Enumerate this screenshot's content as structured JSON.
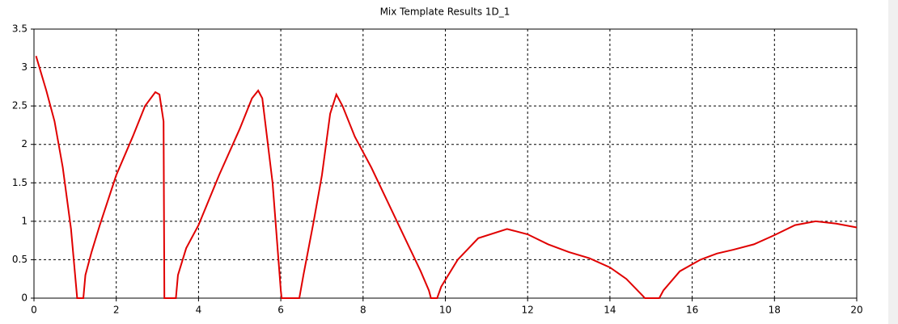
{
  "chart_data": {
    "type": "line",
    "title": "Mix Template Results 1D_1",
    "x": [
      0.05,
      0.3,
      0.5,
      0.7,
      0.9,
      1.0,
      1.05,
      1.2,
      1.25,
      1.4,
      1.6,
      2.0,
      2.4,
      2.7,
      2.95,
      3.05,
      3.15,
      3.17,
      3.45,
      3.5,
      3.7,
      4.0,
      4.5,
      5.0,
      5.3,
      5.45,
      5.55,
      5.8,
      6.0,
      6.02,
      6.45,
      6.55,
      6.8,
      7.0,
      7.2,
      7.35,
      7.5,
      7.8,
      8.2,
      8.6,
      9.0,
      9.4,
      9.6,
      9.65,
      9.8,
      9.9,
      10.3,
      10.8,
      11.5,
      12.0,
      12.5,
      13.0,
      13.5,
      14.0,
      14.4,
      14.8,
      14.85,
      15.2,
      15.3,
      15.7,
      16.2,
      16.6,
      17.0,
      17.5,
      18.0,
      18.5,
      19.0,
      19.5,
      20.0
    ],
    "series": [
      {
        "color": "#e00000",
        "values": [
          3.15,
          2.7,
          2.3,
          1.7,
          0.9,
          0.3,
          0,
          0,
          0.3,
          0.6,
          0.95,
          1.6,
          2.1,
          2.5,
          2.68,
          2.65,
          2.3,
          0,
          0,
          0.3,
          0.65,
          0.95,
          1.6,
          2.2,
          2.6,
          2.7,
          2.6,
          1.5,
          0.1,
          0,
          0,
          0.3,
          1.0,
          1.6,
          2.4,
          2.65,
          2.5,
          2.1,
          1.7,
          1.25,
          0.8,
          0.35,
          0.1,
          0,
          0,
          0.15,
          0.5,
          0.78,
          0.9,
          0.83,
          0.7,
          0.6,
          0.52,
          0.4,
          0.25,
          0.03,
          0,
          0,
          0.1,
          0.35,
          0.5,
          0.58,
          0.63,
          0.7,
          0.82,
          0.95,
          1.0,
          0.97,
          0.92
        ]
      }
    ],
    "xlim": [
      0,
      20
    ],
    "xticks": [
      0,
      2,
      4,
      6,
      8,
      10,
      12,
      14,
      16,
      18,
      20
    ],
    "ylim": [
      0,
      3.5
    ],
    "yticks": [
      0,
      0.5,
      1,
      1.5,
      2,
      2.5,
      3,
      3.5
    ],
    "grid": true
  }
}
